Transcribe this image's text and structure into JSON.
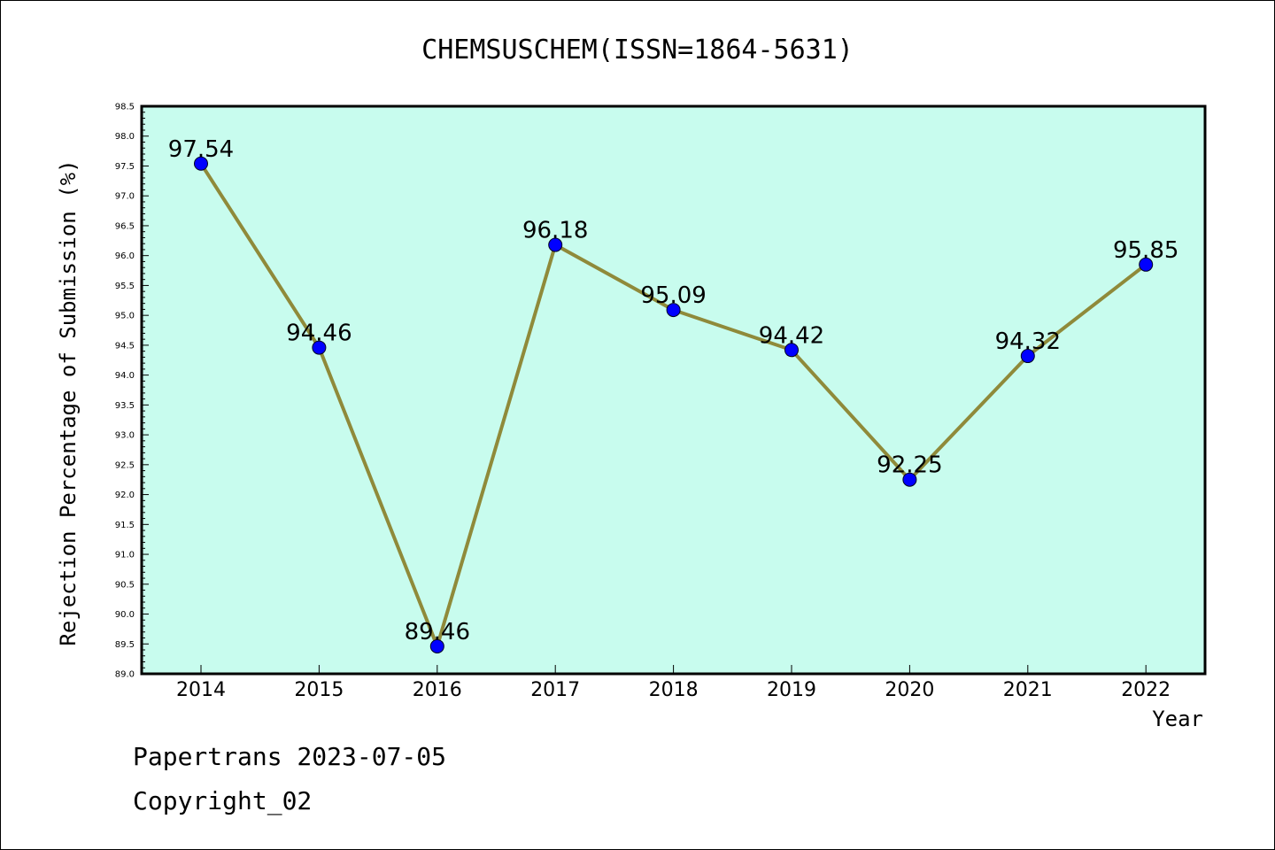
{
  "chart_data": {
    "type": "line",
    "title": "CHEMSUSCHEM(ISSN=1864-5631)",
    "xlabel": "Year",
    "ylabel": "Rejection Percentage of Submission (%)",
    "categories": [
      "2014",
      "2015",
      "2016",
      "2017",
      "2018",
      "2019",
      "2020",
      "2021",
      "2022"
    ],
    "values": [
      97.54,
      94.46,
      89.46,
      96.18,
      95.09,
      94.42,
      92.25,
      94.32,
      95.85
    ],
    "data_labels": [
      "97.54",
      "94.46",
      "89.46",
      "96.18",
      "95.09",
      "94.42",
      "92.25",
      "94.32",
      "95.85"
    ],
    "ylim": [
      89.0,
      98.5
    ],
    "yticks": [
      "89.0",
      "89.5",
      "90.0",
      "90.5",
      "91.0",
      "91.5",
      "92.0",
      "92.5",
      "93.0",
      "93.5",
      "94.0",
      "94.5",
      "95.0",
      "95.5",
      "96.0",
      "96.5",
      "97.0",
      "97.5",
      "98.0",
      "98.5"
    ],
    "grid": false,
    "colors": {
      "plot_background": "#c8fcee",
      "line": "#8f8a3a",
      "marker": "#0000ff"
    }
  },
  "footer": {
    "line1": "Papertrans 2023-07-05",
    "line2": "Copyright_02"
  }
}
